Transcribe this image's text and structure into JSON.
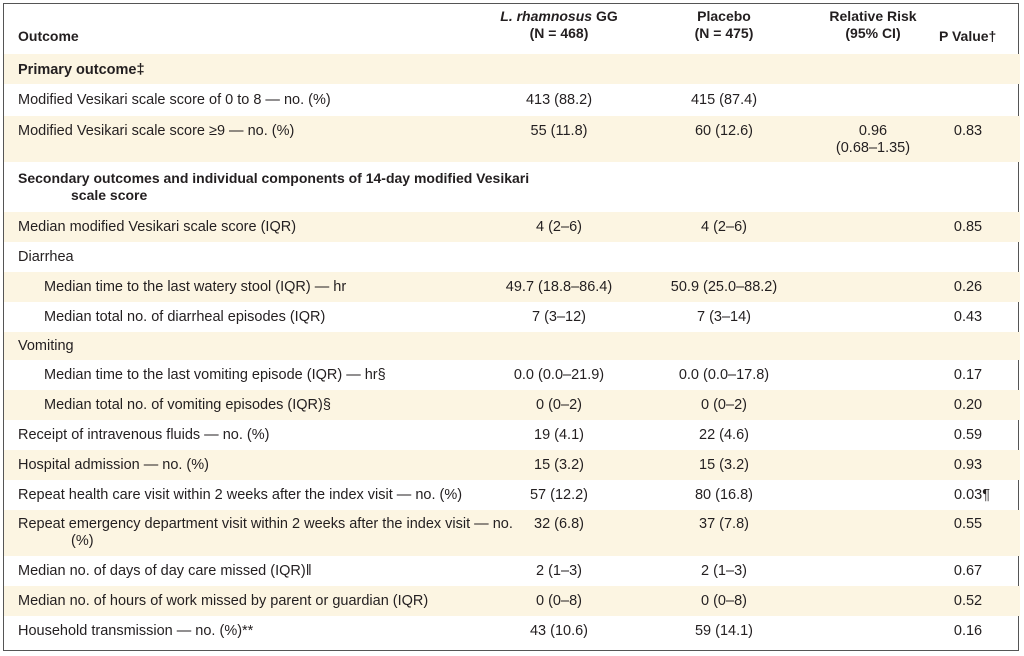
{
  "header": {
    "outcome": "Outcome",
    "lgg_name": "L. rhamnosus",
    "lgg_suffix": " GG",
    "lgg_n": "(N = 468)",
    "placebo": "Placebo",
    "placebo_n": "(N = 475)",
    "rr": "Relative Risk",
    "rr_ci": "(95% CI)",
    "p": "P Value†"
  },
  "rows": [
    {
      "outcome": "Primary outcome‡",
      "lgg": "",
      "placebo": "",
      "rr": "",
      "p": ""
    },
    {
      "outcome": "Modified Vesikari scale score of 0 to 8 — no. (%)",
      "lgg": "413 (88.2)",
      "placebo": "415 (87.4)",
      "rr": "",
      "p": ""
    },
    {
      "outcome": "Modified Vesikari scale score ≥9 — no. (%)",
      "lgg": "55 (11.8)",
      "placebo": "60 (12.6)",
      "rr": "0.96",
      "rr2": "(0.68–1.35)",
      "p": "0.83"
    },
    {
      "outcome": "Secondary outcomes and individual components of 14-day modified Vesikari scale score",
      "lgg": "",
      "placebo": "",
      "rr": "",
      "p": ""
    },
    {
      "outcome": "Median modified Vesikari scale score (IQR)",
      "lgg": "4 (2–6)",
      "placebo": "4 (2–6)",
      "rr": "",
      "p": "0.85"
    },
    {
      "outcome": "Diarrhea",
      "lgg": "",
      "placebo": "",
      "rr": "",
      "p": ""
    },
    {
      "outcome": "Median time to the last watery stool (IQR) — hr",
      "lgg": "49.7 (18.8–86.4)",
      "placebo": "50.9 (25.0–88.2)",
      "rr": "",
      "p": "0.26"
    },
    {
      "outcome": "Median total no. of diarrheal episodes (IQR)",
      "lgg": "7 (3–12)",
      "placebo": "7 (3–14)",
      "rr": "",
      "p": "0.43"
    },
    {
      "outcome": "Vomiting",
      "lgg": "",
      "placebo": "",
      "rr": "",
      "p": ""
    },
    {
      "outcome": "Median time to the last vomiting episode (IQR) — hr§",
      "lgg": "0.0 (0.0–21.9)",
      "placebo": "0.0 (0.0–17.8)",
      "rr": "",
      "p": "0.17"
    },
    {
      "outcome": "Median total no. of vomiting episodes (IQR)§",
      "lgg": "0 (0–2)",
      "placebo": "0 (0–2)",
      "rr": "",
      "p": "0.20"
    },
    {
      "outcome": "Receipt of intravenous fluids — no. (%)",
      "lgg": "19 (4.1)",
      "placebo": "22 (4.6)",
      "rr": "",
      "p": "0.59"
    },
    {
      "outcome": "Hospital admission — no. (%)",
      "lgg": "15 (3.2)",
      "placebo": "15 (3.2)",
      "rr": "",
      "p": "0.93"
    },
    {
      "outcome": "Repeat health care visit within 2 weeks after the index visit — no. (%)",
      "lgg": "57 (12.2)",
      "placebo": "80 (16.8)",
      "rr": "",
      "p": "0.03¶"
    },
    {
      "outcome": "Repeat emergency department visit within 2 weeks after the index visit — no. (%)",
      "lgg": "32 (6.8)",
      "placebo": "37 (7.8)",
      "rr": "",
      "p": "0.55"
    },
    {
      "outcome": "Median no. of days of day care missed (IQR)‖",
      "lgg": "2 (1–3)",
      "placebo": "2 (1–3)",
      "rr": "",
      "p": "0.67"
    },
    {
      "outcome": "Median no. of hours of work missed by parent or guardian (IQR)",
      "lgg": "0 (0–8)",
      "placebo": "0 (0–8)",
      "rr": "",
      "p": "0.52"
    },
    {
      "outcome": "Household transmission — no. (%)**",
      "lgg": "43 (10.6)",
      "placebo": "59 (14.1)",
      "rr": "",
      "p": "0.16"
    }
  ]
}
